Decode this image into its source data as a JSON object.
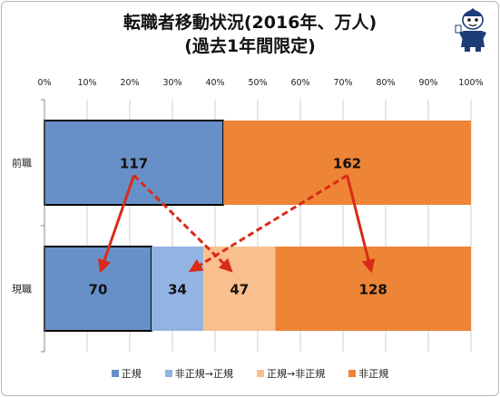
{
  "title": {
    "line1": "転職者移動状況(2016年、万人)",
    "line2": "(過去1年間限定)"
  },
  "colors": {
    "regular": "#6890C8",
    "nonreg_to_reg": "#93B4E2",
    "reg_to_nonreg": "#F9BF8E",
    "nonregular": "#EE8436",
    "arrow": "#D92B18",
    "grid": "#cfcfcf"
  },
  "chart_data": {
    "type": "bar",
    "orientation": "horizontal",
    "stacked": true,
    "percent_scale": true,
    "xlim": [
      0,
      100
    ],
    "x_ticks": [
      "0%",
      "10%",
      "20%",
      "30%",
      "40%",
      "50%",
      "60%",
      "70%",
      "80%",
      "90%",
      "100%"
    ],
    "categories": [
      "前職",
      "現職"
    ],
    "rows": [
      {
        "category": "前職",
        "segments": [
          {
            "series": "正規",
            "value": 117,
            "label": "117"
          },
          {
            "series": "非正規",
            "value": 162,
            "label": "162"
          }
        ]
      },
      {
        "category": "現職",
        "segments": [
          {
            "series": "正規",
            "value": 70,
            "label": "70"
          },
          {
            "series": "非正規→正規",
            "value": 34,
            "label": "34"
          },
          {
            "series": "正規→非正規",
            "value": 47,
            "label": "47"
          },
          {
            "series": "非正規",
            "value": 128,
            "label": "128"
          }
        ]
      }
    ],
    "legend": [
      "正規",
      "非正規→正規",
      "正規→非正規",
      "非正規"
    ],
    "legend_position": "bottom",
    "grid": true,
    "flows": [
      {
        "from": "前職:正規",
        "to": "現職:正規",
        "style": "solid"
      },
      {
        "from": "前職:正規",
        "to": "現職:正規→非正規",
        "style": "dashed"
      },
      {
        "from": "前職:非正規",
        "to": "現職:非正規→正規",
        "style": "dashed"
      },
      {
        "from": "前職:非正規",
        "to": "現職:非正規",
        "style": "solid"
      }
    ]
  }
}
